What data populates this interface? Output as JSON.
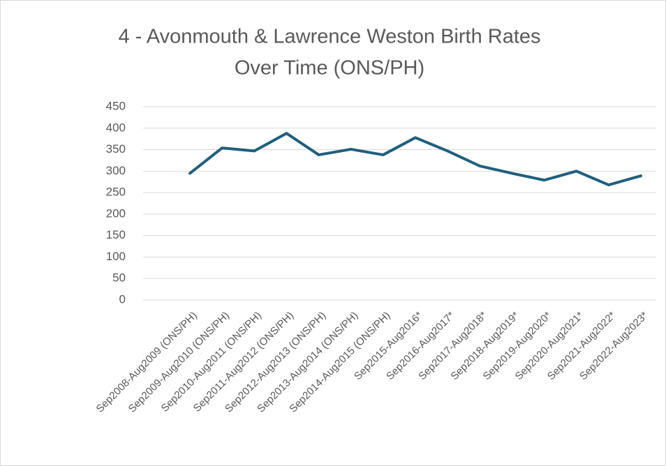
{
  "chart_data": {
    "type": "line",
    "title": [
      "4 - Avonmouth & Lawrence Weston Birth Rates",
      "Over Time (ONS/PH)"
    ],
    "categories": [
      "Sep2008-Aug2009 (ONS/PH)",
      "Sep2009-Aug2010 (ONS/PH)",
      "Sep2010-Aug2011 (ONS/PH)",
      "Sep2011-Aug2012 (ONS/PH)",
      "Sep2012-Aug2013 (ONS/PH)",
      "Sep2013-Aug2014 (ONS/PH)",
      "Sep2014-Aug2015 (ONS/PH)",
      "Sep2015-Aug2016*",
      "Sep2016-Aug2017*",
      "Sep2017-Aug2018*",
      "Sep2018-Aug2019*",
      "Sep2019-Aug2020*",
      "Sep2020-Aug2021*",
      "Sep2021-Aug2022*",
      "Sep2022-Aug2023*"
    ],
    "values": [
      295,
      354,
      347,
      388,
      338,
      351,
      338,
      378,
      347,
      312,
      295,
      279,
      300,
      268,
      289
    ],
    "color": "#1f5f7e",
    "ylim": [
      0,
      450
    ],
    "yticks": [
      0,
      50,
      100,
      150,
      200,
      250,
      300,
      350,
      400,
      450
    ],
    "grid": true
  }
}
